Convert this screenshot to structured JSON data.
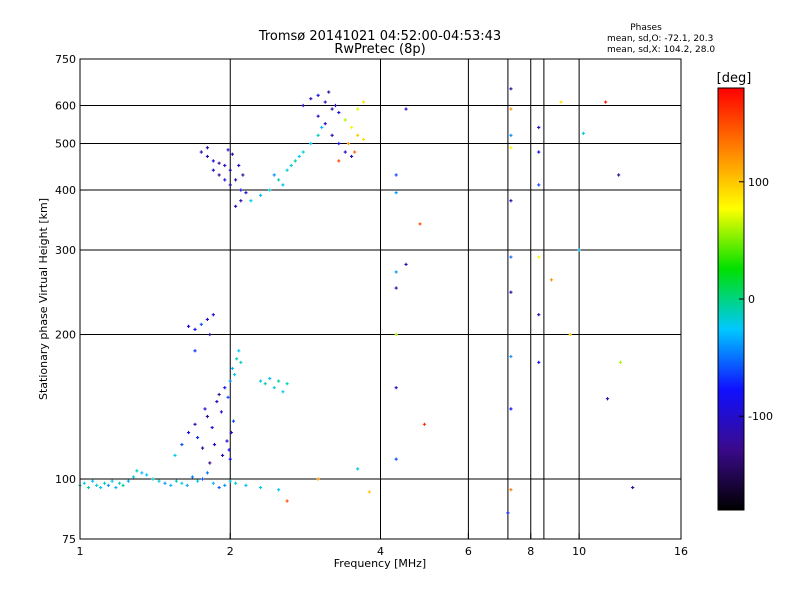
{
  "chart_data": {
    "type": "scatter",
    "title": "Tromsø 20141021 04:52:00-04:53:43",
    "subtitle": "RwPretec (8p)",
    "xlabel": "Frequency [MHz]",
    "ylabel": "Stationary phase Virtual Height [km]",
    "x_scale": "log",
    "y_scale": "log",
    "xlim": [
      1,
      16
    ],
    "ylim": [
      75,
      750
    ],
    "x_ticks": [
      1,
      2,
      4,
      6,
      8,
      10,
      16
    ],
    "x_tick_labels": [
      "1",
      "2",
      "4",
      "6",
      "8",
      "10",
      "16"
    ],
    "y_ticks": [
      75,
      100,
      200,
      300,
      400,
      500,
      600,
      750
    ],
    "y_tick_labels": [
      "75",
      "100",
      "200",
      "300",
      "400",
      "500",
      "600",
      "750"
    ],
    "grid": true,
    "extra_vertical_gridlines": [
      7.2,
      8.5
    ],
    "stats": {
      "header": "Phases",
      "line1": "mean, sd,O: -72.1, 20.3",
      "line2": "mean, sd,X: 104.2, 28.0"
    },
    "colorbar": {
      "label": "[deg]",
      "range": [
        -180,
        180
      ],
      "ticks": [
        100,
        0,
        -100
      ],
      "tick_labels": [
        "100",
        "0",
        "-100"
      ],
      "colors": [
        "#000000",
        "#3a0a8a",
        "#1010ff",
        "#00c8ff",
        "#00e000",
        "#ffff00",
        "#ff8000",
        "#ff0000"
      ]
    },
    "series": [
      {
        "points": [
          [
            1.0,
            97,
            -10
          ],
          [
            1.02,
            98,
            -20
          ],
          [
            1.04,
            96,
            -5
          ],
          [
            1.06,
            99,
            -30
          ],
          [
            1.08,
            97,
            -15
          ],
          [
            1.1,
            96,
            -25
          ],
          [
            1.12,
            98,
            -10
          ],
          [
            1.14,
            97,
            -40
          ],
          [
            1.16,
            99,
            -20
          ],
          [
            1.18,
            96,
            -30
          ],
          [
            1.2,
            98,
            -15
          ],
          [
            1.22,
            97,
            -5
          ],
          [
            1.25,
            99,
            -35
          ],
          [
            1.28,
            101,
            -20
          ],
          [
            1.3,
            104,
            -10
          ],
          [
            1.33,
            103,
            -30
          ],
          [
            1.36,
            102,
            -25
          ],
          [
            1.4,
            100,
            -15
          ],
          [
            1.44,
            99,
            -20
          ],
          [
            1.48,
            98,
            -40
          ],
          [
            1.52,
            97,
            -30
          ],
          [
            1.56,
            99,
            -10
          ],
          [
            1.6,
            98,
            -25
          ],
          [
            1.64,
            97,
            -35
          ],
          [
            1.68,
            101,
            -45
          ],
          [
            1.72,
            99,
            -20
          ],
          [
            1.76,
            100,
            -60
          ],
          [
            1.8,
            103,
            -50
          ],
          [
            1.85,
            98,
            -30
          ],
          [
            1.9,
            96,
            -55
          ],
          [
            1.95,
            97,
            -40
          ],
          [
            2.0,
            99,
            -20
          ],
          [
            2.05,
            98,
            -15
          ],
          [
            2.15,
            97,
            -30
          ],
          [
            2.3,
            96,
            -20
          ],
          [
            2.5,
            95,
            -25
          ],
          [
            1.55,
            112,
            -20
          ],
          [
            1.6,
            118,
            -60
          ],
          [
            1.65,
            125,
            -90
          ],
          [
            1.7,
            130,
            -110
          ],
          [
            1.72,
            122,
            -70
          ],
          [
            1.78,
            140,
            -100
          ],
          [
            1.8,
            135,
            -130
          ],
          [
            1.84,
            128,
            -90
          ],
          [
            1.88,
            145,
            -110
          ],
          [
            1.9,
            150,
            -120
          ],
          [
            1.92,
            138,
            -100
          ],
          [
            1.95,
            155,
            -80
          ],
          [
            1.98,
            148,
            -60
          ],
          [
            2.0,
            160,
            -40
          ],
          [
            2.02,
            170,
            -30
          ],
          [
            2.04,
            165,
            -20
          ],
          [
            2.06,
            178,
            -10
          ],
          [
            2.08,
            185,
            -25
          ],
          [
            2.1,
            175,
            -15
          ],
          [
            1.97,
            120,
            -100
          ],
          [
            1.99,
            115,
            -90
          ],
          [
            2.0,
            110,
            -80
          ],
          [
            2.01,
            125,
            -100
          ],
          [
            2.03,
            132,
            -60
          ],
          [
            1.93,
            112,
            -110
          ],
          [
            1.86,
            118,
            -95
          ],
          [
            1.82,
            108,
            -130
          ],
          [
            1.76,
            116,
            -120
          ],
          [
            1.65,
            208,
            -100
          ],
          [
            1.7,
            205,
            -80
          ],
          [
            1.75,
            210,
            -60
          ],
          [
            1.8,
            215,
            -100
          ],
          [
            1.82,
            200,
            -120
          ],
          [
            1.85,
            220,
            -90
          ],
          [
            1.7,
            185,
            -70
          ],
          [
            2.3,
            160,
            -20
          ],
          [
            2.35,
            158,
            -10
          ],
          [
            2.4,
            162,
            -30
          ],
          [
            2.45,
            155,
            -15
          ],
          [
            2.5,
            160,
            -5
          ],
          [
            2.55,
            152,
            -25
          ],
          [
            2.6,
            158,
            -10
          ],
          [
            1.75,
            480,
            -100
          ],
          [
            1.8,
            470,
            -110
          ],
          [
            1.85,
            460,
            -90
          ],
          [
            1.9,
            455,
            -120
          ],
          [
            1.95,
            450,
            -100
          ],
          [
            2.0,
            440,
            -110
          ],
          [
            2.05,
            420,
            -120
          ],
          [
            2.1,
            400,
            -90
          ],
          [
            2.15,
            395,
            -100
          ],
          [
            2.1,
            380,
            -110
          ],
          [
            2.05,
            370,
            -105
          ],
          [
            2.0,
            410,
            -115
          ],
          [
            1.95,
            420,
            -95
          ],
          [
            1.9,
            430,
            -125
          ],
          [
            1.85,
            440,
            -100
          ],
          [
            1.8,
            490,
            -115
          ],
          [
            1.98,
            485,
            -90
          ],
          [
            2.02,
            475,
            -110
          ],
          [
            2.08,
            450,
            -100
          ],
          [
            2.12,
            430,
            -120
          ],
          [
            2.2,
            380,
            -20
          ],
          [
            2.3,
            390,
            -30
          ],
          [
            2.4,
            400,
            -20
          ],
          [
            2.5,
            420,
            -10
          ],
          [
            2.6,
            440,
            -20
          ],
          [
            2.7,
            460,
            -5
          ],
          [
            2.8,
            480,
            -15
          ],
          [
            2.9,
            500,
            -25
          ],
          [
            3.0,
            520,
            -10
          ],
          [
            3.05,
            540,
            -30
          ],
          [
            2.45,
            430,
            -40
          ],
          [
            2.55,
            410,
            -30
          ],
          [
            2.65,
            450,
            -20
          ],
          [
            2.75,
            470,
            -25
          ],
          [
            2.8,
            600,
            -100
          ],
          [
            2.9,
            620,
            -110
          ],
          [
            3.0,
            630,
            -90
          ],
          [
            3.1,
            610,
            -100
          ],
          [
            3.2,
            590,
            -120
          ],
          [
            3.3,
            580,
            -95
          ],
          [
            3.0,
            570,
            -105
          ],
          [
            3.1,
            550,
            -100
          ],
          [
            3.2,
            520,
            -110
          ],
          [
            3.3,
            500,
            -90
          ],
          [
            3.4,
            480,
            -100
          ],
          [
            3.5,
            470,
            -110
          ],
          [
            3.15,
            640,
            -120
          ],
          [
            3.25,
            600,
            -100
          ],
          [
            3.4,
            560,
            60
          ],
          [
            3.5,
            540,
            80
          ],
          [
            3.6,
            520,
            100
          ],
          [
            3.7,
            510,
            90
          ],
          [
            3.45,
            500,
            120
          ],
          [
            3.55,
            480,
            140
          ],
          [
            3.3,
            460,
            150
          ],
          [
            3.6,
            590,
            70
          ],
          [
            3.7,
            610,
            90
          ],
          [
            4.3,
            430,
            -60
          ],
          [
            4.3,
            395,
            -40
          ],
          [
            4.3,
            270,
            -40
          ],
          [
            4.3,
            250,
            -110
          ],
          [
            4.3,
            200,
            60
          ],
          [
            4.3,
            155,
            -110
          ],
          [
            4.3,
            110,
            -60
          ],
          [
            4.5,
            590,
            -110
          ],
          [
            4.5,
            280,
            -110
          ],
          [
            4.8,
            340,
            150
          ],
          [
            4.9,
            130,
            160
          ],
          [
            7.3,
            650,
            -120
          ],
          [
            7.3,
            590,
            120
          ],
          [
            7.3,
            520,
            -40
          ],
          [
            7.3,
            490,
            80
          ],
          [
            7.3,
            380,
            -110
          ],
          [
            7.3,
            290,
            -50
          ],
          [
            7.3,
            245,
            -110
          ],
          [
            7.3,
            180,
            -40
          ],
          [
            7.3,
            140,
            -80
          ],
          [
            7.3,
            95,
            130
          ],
          [
            7.2,
            85,
            -70
          ],
          [
            8.3,
            540,
            -100
          ],
          [
            8.3,
            480,
            -80
          ],
          [
            8.3,
            410,
            -60
          ],
          [
            8.3,
            290,
            80
          ],
          [
            8.3,
            220,
            -110
          ],
          [
            8.3,
            175,
            -80
          ],
          [
            8.8,
            260,
            120
          ],
          [
            9.2,
            610,
            90
          ],
          [
            9.6,
            200,
            100
          ],
          [
            10.0,
            300,
            -30
          ],
          [
            10.2,
            525,
            -20
          ],
          [
            11.3,
            610,
            170
          ],
          [
            11.4,
            147,
            -110
          ],
          [
            12.0,
            430,
            -120
          ],
          [
            12.1,
            175,
            60
          ],
          [
            12.8,
            96,
            -120
          ],
          [
            3.8,
            94,
            100
          ],
          [
            2.6,
            90,
            150
          ],
          [
            3.0,
            100,
            120
          ],
          [
            3.6,
            105,
            -20
          ]
        ]
      }
    ]
  }
}
